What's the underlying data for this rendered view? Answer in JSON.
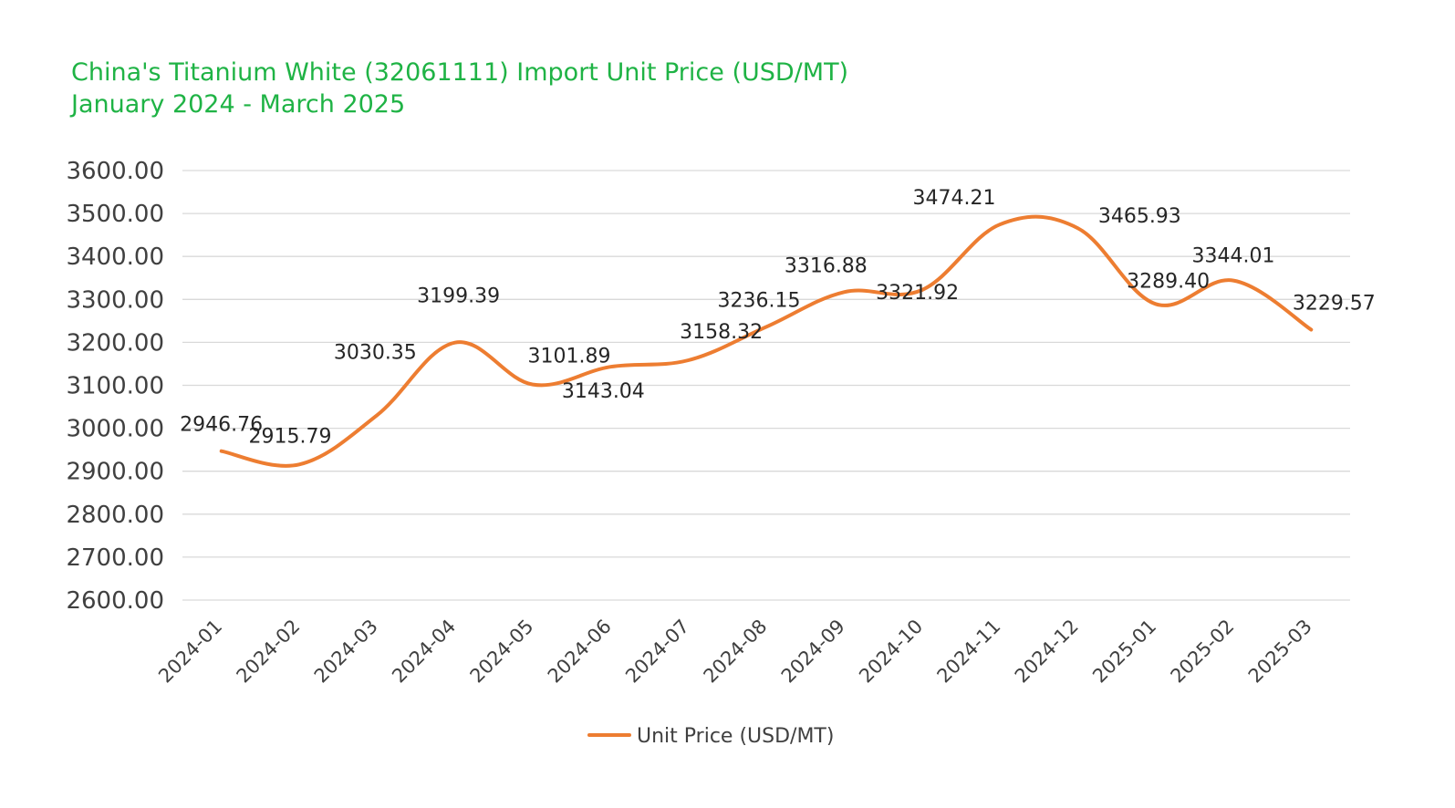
{
  "title_lines": [
    "China's Titanium White (32061111) Import Unit Price (USD/MT)",
    "January 2024 - March 2025"
  ],
  "chart_data": {
    "type": "line",
    "title": "China's Titanium White (32061111) Import Unit Price (USD/MT) January 2024 - March 2025",
    "xlabel": "",
    "ylabel": "",
    "categories": [
      "2024-01",
      "2024-02",
      "2024-03",
      "2024-04",
      "2024-05",
      "2024-06",
      "2024-07",
      "2024-08",
      "2024-09",
      "2024-10",
      "2024-11",
      "2024-12",
      "2025-01",
      "2025-02",
      "2025-03"
    ],
    "series": [
      {
        "name": "Unit Price (USD/MT)",
        "color": "#ed7d31",
        "values": [
          2946.76,
          2915.79,
          3030.35,
          3199.39,
          3101.89,
          3143.04,
          3158.32,
          3236.15,
          3316.88,
          3321.92,
          3474.21,
          3465.93,
          3289.4,
          3344.01,
          3229.57
        ],
        "labels": [
          "2946.76",
          "2915.79",
          "3030.35",
          "3199.39",
          "3101.89",
          "3143.04",
          "3158.32",
          "3236.15",
          "3316.88",
          "3321.92",
          "3474.21",
          "3465.93",
          "3289.40",
          "3344.01",
          "3229.57"
        ]
      }
    ],
    "ylim": [
      2600,
      3600
    ],
    "yticks": [
      "2600.00",
      "2700.00",
      "2800.00",
      "2900.00",
      "3000.00",
      "3100.00",
      "3200.00",
      "3300.00",
      "3400.00",
      "3500.00",
      "3600.00"
    ],
    "grid": true,
    "legend": "bottom",
    "smooth": true
  }
}
